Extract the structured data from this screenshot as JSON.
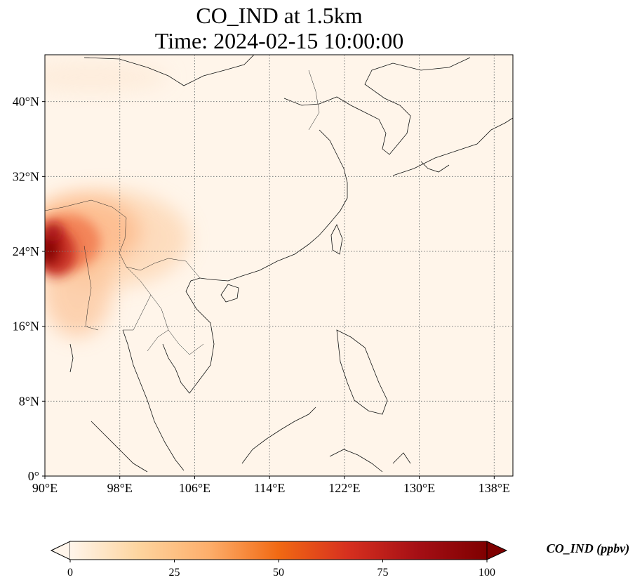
{
  "title": {
    "line1": "CO_IND at 1.5km",
    "line2": "Time: 2024-02-15 10:00:00"
  },
  "map": {
    "lon_range": [
      90,
      140
    ],
    "lat_range": [
      0,
      45
    ],
    "lon_ticks": [
      {
        "value": 90,
        "label": "90°E"
      },
      {
        "value": 98,
        "label": "98°E"
      },
      {
        "value": 106,
        "label": "106°E"
      },
      {
        "value": 114,
        "label": "114°E"
      },
      {
        "value": 122,
        "label": "122°E"
      },
      {
        "value": 130,
        "label": "130°E"
      },
      {
        "value": 138,
        "label": "138°E"
      }
    ],
    "lat_ticks": [
      {
        "value": 0,
        "label": "0°"
      },
      {
        "value": 8,
        "label": "8°N"
      },
      {
        "value": 16,
        "label": "16°N"
      },
      {
        "value": 24,
        "label": "24°N"
      },
      {
        "value": 32,
        "label": "32°N"
      },
      {
        "value": 40,
        "label": "40°N"
      }
    ],
    "gridlines": "dotted"
  },
  "colorbar": {
    "label": "CO_IND (ppbv)",
    "min": 0,
    "max": 100,
    "ticks": [
      {
        "value": 0,
        "label": "0"
      },
      {
        "value": 25,
        "label": "25"
      },
      {
        "value": 50,
        "label": "50"
      },
      {
        "value": 75,
        "label": "75"
      },
      {
        "value": 100,
        "label": "100"
      }
    ],
    "colormap": [
      "#fff5eb",
      "#fdd49e",
      "#fdae6b",
      "#f16913",
      "#d7301f",
      "#a50f15",
      "#7f0000"
    ]
  }
}
